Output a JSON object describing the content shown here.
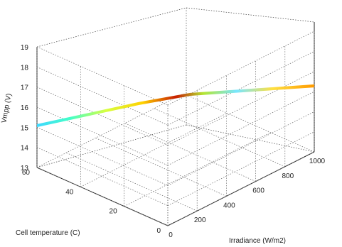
{
  "chart_data": {
    "type": "surface3d",
    "title": "",
    "xlabel": "Irradiance (W/m2)",
    "ylabel": "Cell temperature (C)",
    "zlabel": "Vmpp (V)",
    "xlim": [
      0,
      1000
    ],
    "ylim": [
      0,
      60
    ],
    "zlim": [
      13,
      19
    ],
    "xticks": [
      "0",
      "200",
      "400",
      "600",
      "800",
      "1000"
    ],
    "yticks": [
      "0",
      "20",
      "40",
      "60"
    ],
    "zticks": [
      "13",
      "14",
      "15",
      "16",
      "17",
      "18",
      "19"
    ],
    "grid": true,
    "colormap": "jet",
    "surface_edge": [
      {
        "irradiance": 0,
        "temperature": 60,
        "vmpp": 15.1
      },
      {
        "irradiance": 200,
        "temperature": 50,
        "vmpp": 15.4
      },
      {
        "irradiance": 400,
        "temperature": 40,
        "vmpp": 15.7
      },
      {
        "irradiance": 600,
        "temperature": 30,
        "vmpp": 15.9
      },
      {
        "irradiance": 800,
        "temperature": 15,
        "vmpp": 16.1
      },
      {
        "irradiance": 1000,
        "temperature": 0,
        "vmpp": 16.3
      }
    ]
  }
}
